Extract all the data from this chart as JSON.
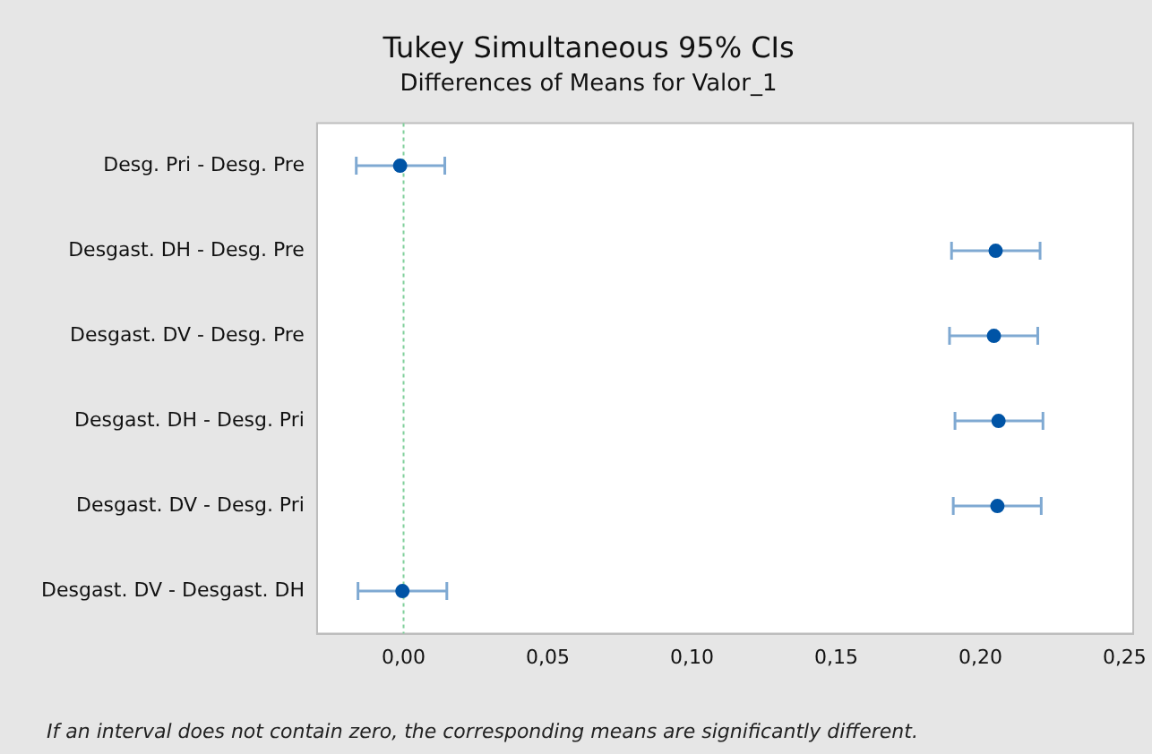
{
  "chart_data": {
    "type": "scatter",
    "orientation": "horizontal",
    "title": "Tukey Simultaneous 95% CIs",
    "subtitle": "Differences of Means for Valor_1",
    "categories": [
      "Desg. Pri - Desg. Pre",
      "Desgast. DH - Desg. Pre",
      "Desgast. DV - Desg. Pre",
      "Desgast. DH - Desg. Pri",
      "Desgast. DV - Desg. Pri",
      "Desgast. DV - Desgast. DH"
    ],
    "series": [
      {
        "color": "#0054a6",
        "values": [
          -0.0012,
          0.2053,
          0.2047,
          0.2063,
          0.2059,
          -0.0004
        ],
        "errors": [
          [
            -0.0164,
            0.0143
          ],
          [
            0.19,
            0.2207
          ],
          [
            0.1893,
            0.2199
          ],
          [
            0.1912,
            0.2217
          ],
          [
            0.1906,
            0.2211
          ],
          [
            -0.0158,
            0.015
          ]
        ]
      }
    ],
    "xlim": [
      -0.03,
      0.253
    ],
    "xticks": [
      {
        "value": 0,
        "label": "0,00"
      },
      {
        "value": 0.05,
        "label": "0,05"
      },
      {
        "value": 0.1,
        "label": "0,10"
      },
      {
        "value": 0.15,
        "label": "0,15"
      },
      {
        "value": 0.2,
        "label": "0,20"
      },
      {
        "value": 0.25,
        "label": "0,25"
      }
    ],
    "ref_lines": [
      {
        "axis": "x",
        "value": 0,
        "color": "#7fcf9a",
        "line_style": "dotted"
      }
    ],
    "marker": "circle",
    "grid": false,
    "legend": false,
    "annotations": [
      "If an interval does not contain zero, the corresponding means are significantly different."
    ]
  }
}
